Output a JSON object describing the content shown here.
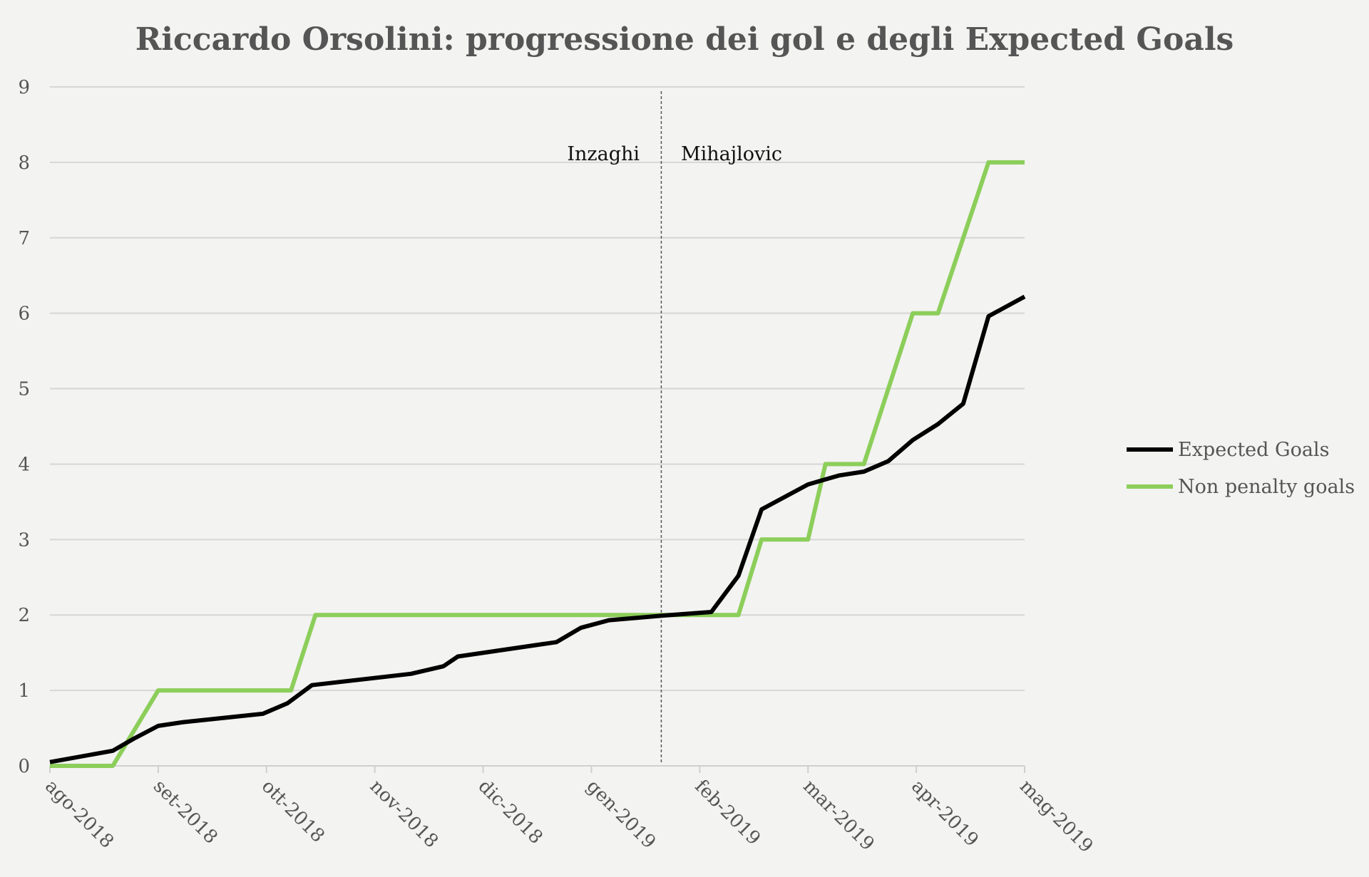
{
  "chart_data": {
    "type": "line",
    "title": "Riccardo Orsolini: progressione dei gol e degli Expected Goals",
    "x_ticks": [
      "ago-2018",
      "set-2018",
      "ott-2018",
      "nov-2018",
      "dic-2018",
      "gen-2019",
      "feb-2019",
      "mar-2019",
      "apr-2019",
      "mag-2019"
    ],
    "ylim": [
      0,
      9
    ],
    "y_ticks": [
      0,
      1,
      2,
      3,
      4,
      5,
      6,
      7,
      8,
      9
    ],
    "grid": true,
    "legend": "right",
    "annotations": {
      "divider_at": "2019-01-21",
      "left_label": "Inzaghi",
      "right_label": "Mihajlovic"
    },
    "series": [
      {
        "name": "Expected Goals",
        "color": "#000000",
        "points": [
          [
            "2018-08-01",
            0.05
          ],
          [
            "2018-08-19",
            0.2
          ],
          [
            "2018-08-25",
            0.36
          ],
          [
            "2018-09-01",
            0.53
          ],
          [
            "2018-09-08",
            0.58
          ],
          [
            "2018-09-30",
            0.69
          ],
          [
            "2018-10-07",
            0.83
          ],
          [
            "2018-10-14",
            1.07
          ],
          [
            "2018-11-11",
            1.22
          ],
          [
            "2018-11-20",
            1.32
          ],
          [
            "2018-11-24",
            1.45
          ],
          [
            "2018-12-22",
            1.64
          ],
          [
            "2018-12-29",
            1.83
          ],
          [
            "2019-01-06",
            1.93
          ],
          [
            "2019-01-21",
            1.99
          ],
          [
            "2019-02-04",
            2.04
          ],
          [
            "2019-02-11",
            2.52
          ],
          [
            "2019-02-17",
            3.4
          ],
          [
            "2019-03-01",
            3.73
          ],
          [
            "2019-03-10",
            3.85
          ],
          [
            "2019-03-17",
            3.9
          ],
          [
            "2019-03-24",
            4.04
          ],
          [
            "2019-03-31",
            4.32
          ],
          [
            "2019-04-07",
            4.53
          ],
          [
            "2019-04-14",
            4.8
          ],
          [
            "2019-04-21",
            5.96
          ],
          [
            "2019-05-01",
            6.22
          ]
        ]
      },
      {
        "name": "Non penalty goals",
        "color": "#8cce5a",
        "points": [
          [
            "2018-08-01",
            0
          ],
          [
            "2018-08-19",
            0
          ],
          [
            "2018-09-01",
            1
          ],
          [
            "2018-10-08",
            1
          ],
          [
            "2018-10-15",
            2
          ],
          [
            "2019-02-11",
            2
          ],
          [
            "2019-02-17",
            3
          ],
          [
            "2019-03-01",
            3
          ],
          [
            "2019-03-06",
            4
          ],
          [
            "2019-03-17",
            4
          ],
          [
            "2019-03-31",
            6
          ],
          [
            "2019-04-07",
            6
          ],
          [
            "2019-04-21",
            8
          ],
          [
            "2019-05-01",
            8
          ]
        ]
      }
    ]
  }
}
